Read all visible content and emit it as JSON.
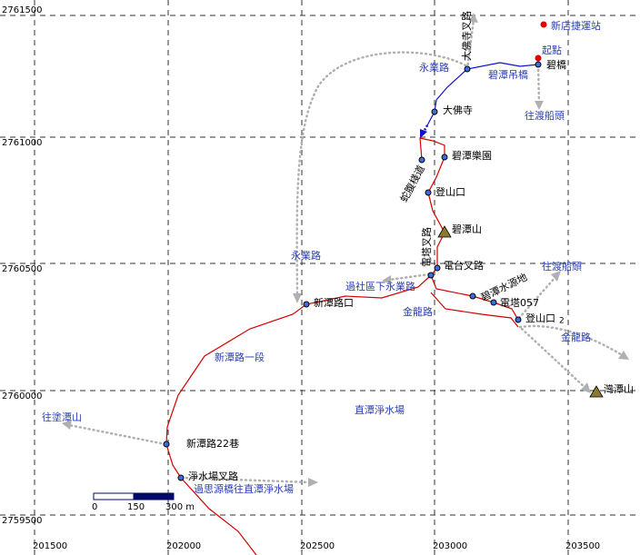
{
  "grid": {
    "eastings": [
      201500,
      202000,
      202500,
      203000,
      203500
    ],
    "northings": [
      2761500,
      2761000,
      2760500,
      2760000,
      2759500
    ]
  },
  "places": [
    "碧橋",
    "大佛寺叉路",
    "大佛寺",
    "蛇腹棧道",
    "碧潭樂園",
    "登山口",
    "碧潭山",
    "電塔叉路",
    "電台叉路",
    "碧潭水源地",
    "電塔057",
    "登山口",
    "2",
    "新潭路口",
    "新潭路22巷",
    "淨水場叉路",
    "灣潭山"
  ],
  "markers": [
    "新店捷運站",
    "起點"
  ],
  "road_labels": [
    "永業路",
    "碧潭吊橋",
    "往渡船頭",
    "永業路",
    "往渡船頭",
    "過社區下永業路",
    "金龍路",
    "金龍路",
    "新潭路一段",
    "直潭淨水場",
    "往塗潭山",
    "過思源橋往直潭淨水場"
  ],
  "scale": {
    "labels": [
      "0",
      "150",
      "300 m"
    ]
  }
}
